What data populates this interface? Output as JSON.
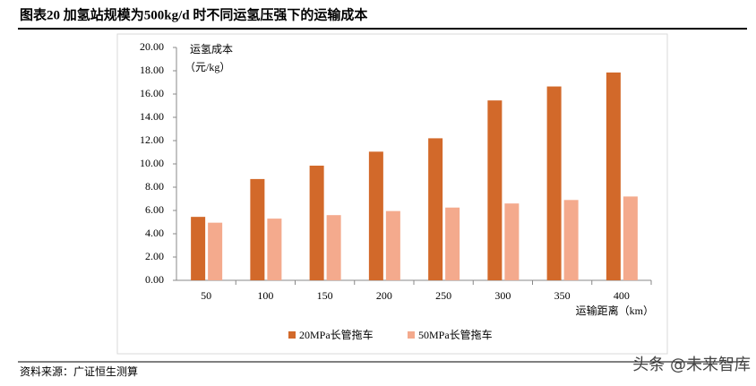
{
  "header": {
    "title": "图表20 加氢站规模为500kg/d 时不同运氢压强下的运输成本"
  },
  "chart_data": {
    "type": "bar",
    "y_label": "运氢成本",
    "y_unit": "（元/kg）",
    "x_label": "运输距离（km）",
    "categories": [
      "50",
      "100",
      "150",
      "200",
      "250",
      "300",
      "350",
      "400"
    ],
    "series": [
      {
        "name": "20MPa长管拖车",
        "color": "#d2692a",
        "values": [
          5.45,
          8.7,
          9.85,
          11.05,
          12.2,
          15.45,
          16.65,
          17.85
        ]
      },
      {
        "name": "50MPa长管拖车",
        "color": "#f4aa8d",
        "values": [
          4.95,
          5.3,
          5.6,
          5.95,
          6.25,
          6.6,
          6.9,
          7.2
        ]
      }
    ],
    "ylim": [
      0,
      20
    ],
    "yticks": [
      {
        "value": 0,
        "label": "0.00"
      },
      {
        "value": 2,
        "label": "2.00"
      },
      {
        "value": 4,
        "label": "4.00"
      },
      {
        "value": 6,
        "label": "6.00"
      },
      {
        "value": 8,
        "label": "8.00"
      },
      {
        "value": 10,
        "label": "10.00"
      },
      {
        "value": 12,
        "label": "12.00"
      },
      {
        "value": 14,
        "label": "14.00"
      },
      {
        "value": 16,
        "label": "16.00"
      },
      {
        "value": 18,
        "label": "18.00"
      },
      {
        "value": 20,
        "label": "20.00"
      }
    ],
    "legend": "bottom"
  },
  "footer": {
    "source": "资料来源：广证恒生测算",
    "watermark": "头条 @未来智库"
  }
}
